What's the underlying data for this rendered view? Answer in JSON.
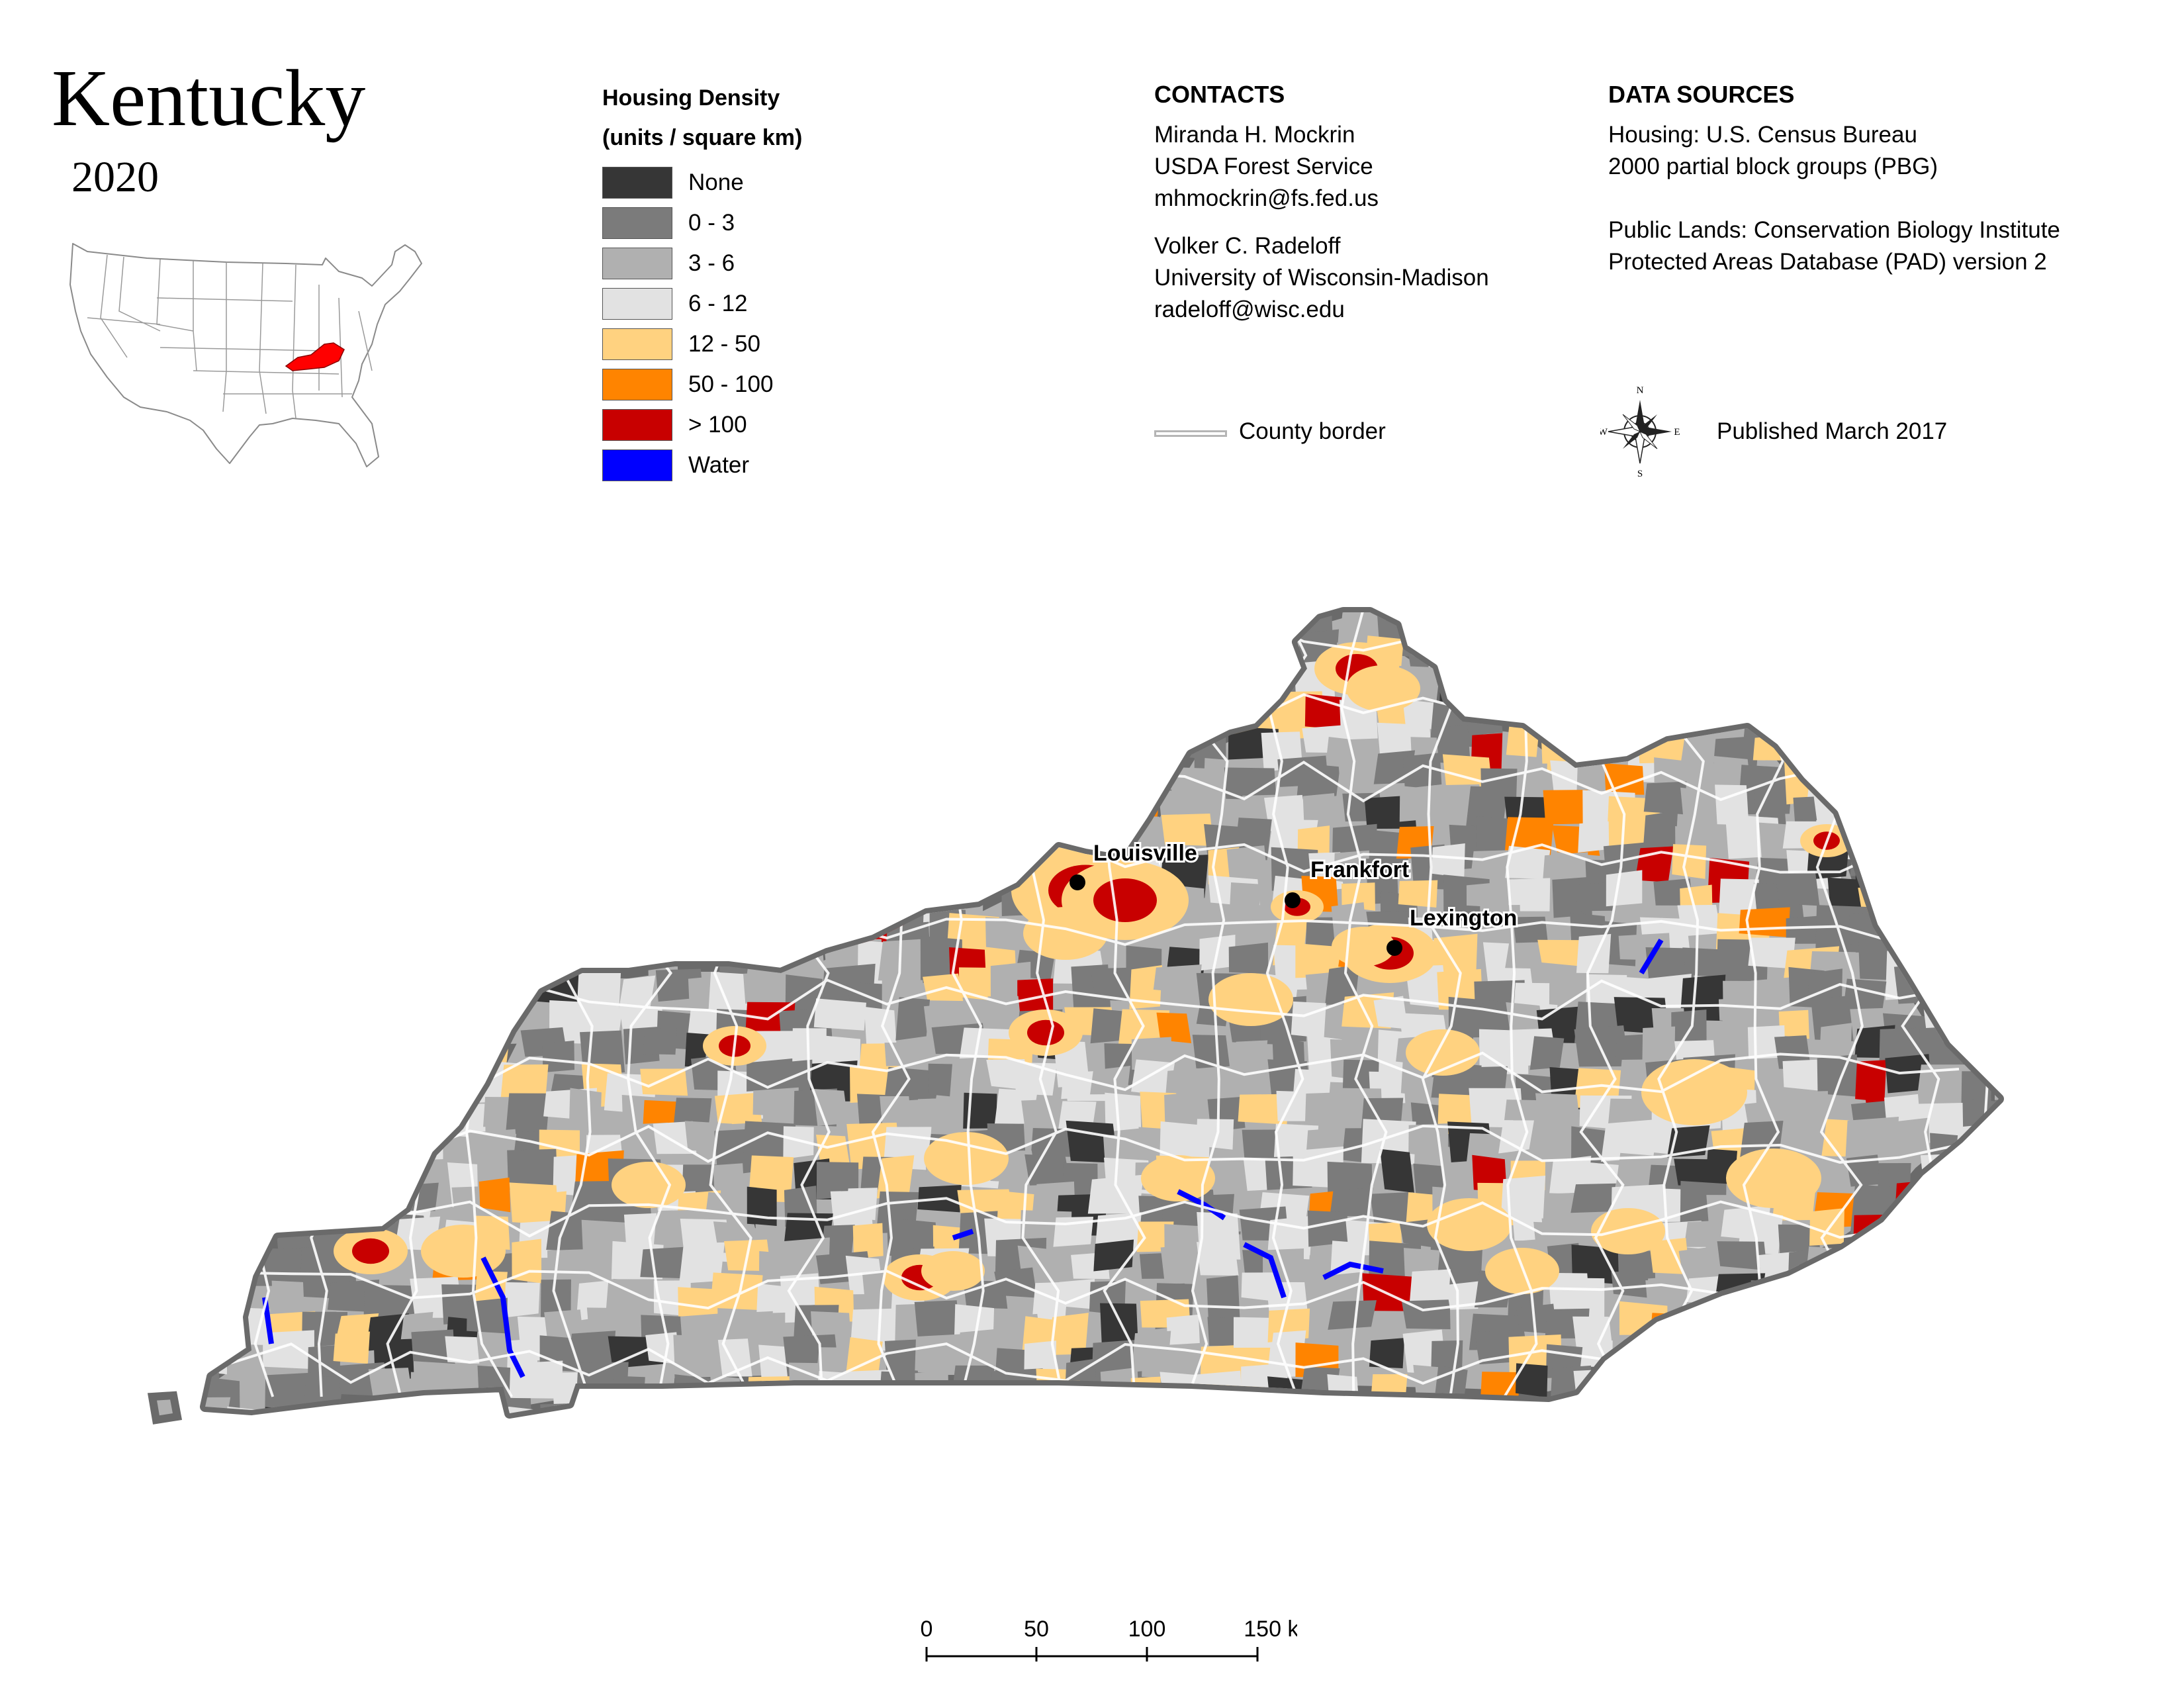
{
  "title": "Kentucky",
  "year": "2020",
  "legend": {
    "title_line1": "Housing Density",
    "title_line2": "(units / square km)",
    "items": [
      {
        "label": "None",
        "color": "#363636"
      },
      {
        "label": "0 - 3",
        "color": "#7b7b7b"
      },
      {
        "label": "3 - 6",
        "color": "#b0b0b0"
      },
      {
        "label": "6 - 12",
        "color": "#e2e2e2"
      },
      {
        "label": "12 - 50",
        "color": "#ffd280"
      },
      {
        "label": "50 - 100",
        "color": "#ff8400"
      },
      {
        "label": "> 100",
        "color": "#c80000"
      },
      {
        "label": "Water",
        "color": "#0000ff"
      }
    ]
  },
  "contacts": {
    "heading": "CONTACTS",
    "person1": [
      "Miranda H. Mockrin",
      "USDA Forest Service",
      "mhmockrin@fs.fed.us"
    ],
    "person2": [
      "Volker C. Radeloff",
      "University of Wisconsin-Madison",
      "radeloff@wisc.edu"
    ]
  },
  "data_sources": {
    "heading": "DATA SOURCES",
    "housing": [
      "Housing: U.S. Census Bureau",
      "2000 partial block groups (PBG)"
    ],
    "public_lands": [
      "Public Lands: Conservation Biology Institute",
      "Protected Areas Database (PAD) version 2"
    ]
  },
  "county_border_label": "County border",
  "compass": {
    "n": "N",
    "s": "S",
    "e": "E",
    "w": "W"
  },
  "published": "Published March 2017",
  "cities": [
    {
      "name": "Louisville"
    },
    {
      "name": "Frankfort"
    },
    {
      "name": "Lexington"
    }
  ],
  "scale": {
    "ticks": [
      "0",
      "50",
      "100",
      "150 km"
    ]
  },
  "colors": {
    "state_border": "#6a6a6a",
    "county_border": "#ffffff",
    "highlight_state": "#ff0000"
  }
}
